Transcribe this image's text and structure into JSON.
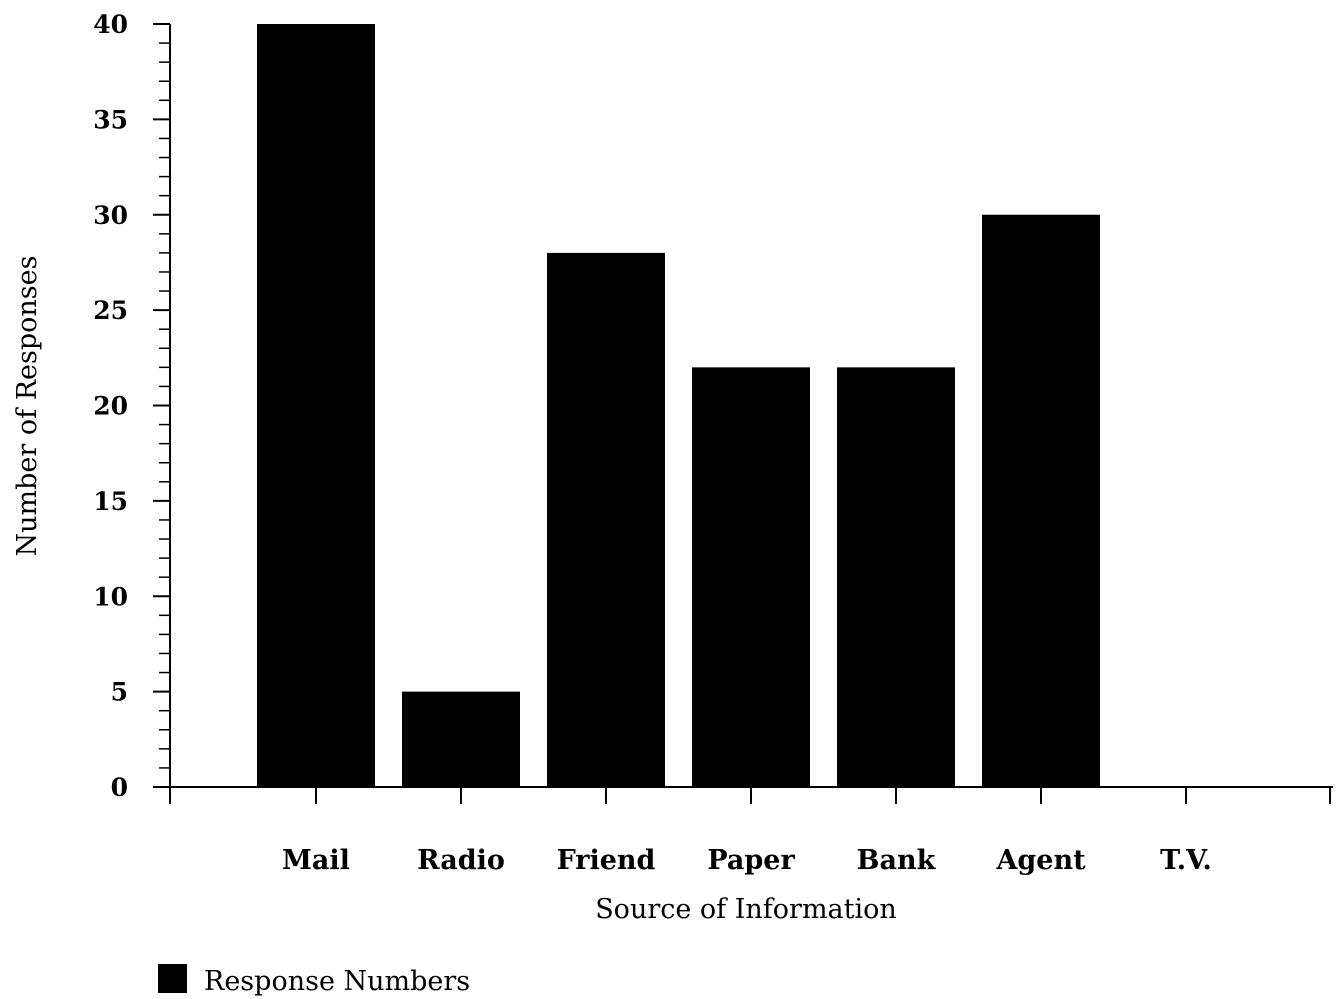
{
  "chart_data": {
    "type": "bar",
    "title": "",
    "xlabel": "Source of Information",
    "ylabel": "Number of Responses",
    "categories": [
      "Mail",
      "Radio",
      "Friend",
      "Paper",
      "Bank",
      "Agent",
      "T.V."
    ],
    "series": [
      {
        "name": "Response Numbers",
        "values": [
          40,
          5,
          28,
          22,
          22,
          30,
          0
        ],
        "color": "#000000"
      }
    ],
    "ylim": [
      0,
      40
    ],
    "yticks": [
      0,
      5,
      10,
      15,
      20,
      25,
      30,
      35,
      40
    ],
    "yticklabels": [
      "0",
      "5",
      "10",
      "15",
      "20",
      "25",
      "30",
      "35",
      "40"
    ],
    "y_minor_step": 1,
    "grid": false,
    "legend": {
      "position": "bottom-left",
      "entries": [
        "Response Numbers"
      ]
    }
  }
}
